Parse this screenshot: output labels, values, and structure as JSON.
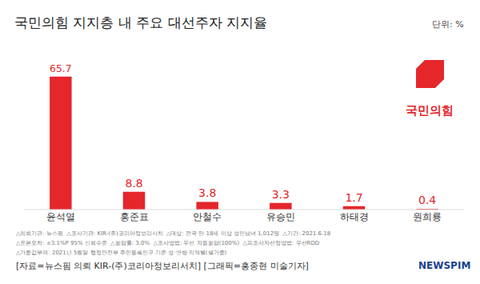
{
  "chart_data": {
    "type": "bar",
    "title": "국민의힘 지지층 내 주요 대선주자 지지율",
    "unit": "단위: %",
    "categories": [
      "윤석열",
      "홍준표",
      "안철수",
      "유승민",
      "하태경",
      "원희룡"
    ],
    "values": [
      65.7,
      8.8,
      3.8,
      3.3,
      1.7,
      0.4
    ],
    "color": "#e5262b",
    "ylim": [
      0,
      70
    ],
    "grid": false,
    "data_labels": true,
    "tick_labels": "x",
    "brand_logo": "국민의힘",
    "notes": [
      "△의뢰기관: 뉴스핌  △조사기관: KIR-(주)코리아정보리서치  △대상: 전국 만 18세 이상 성인남녀 1,012명  △기간: 2021.6.18",
      "△표본오차: ±3.1%P 95% 신뢰수준  △응답률: 3.0%  △조사방법: 무선 자동응답(100%)  △피조사자선정방법: 무선RDD",
      "△가중값부여: 2021년 5월말 행정안전부 주민등록인구 기준 성·연령·지역별(셀가중)"
    ],
    "source": "[자료=뉴스핌 의뢰 KIR-(주)코리아정보리서치] [그래픽=홍종현 미술기자]",
    "publisher": "NEWSPIM"
  }
}
